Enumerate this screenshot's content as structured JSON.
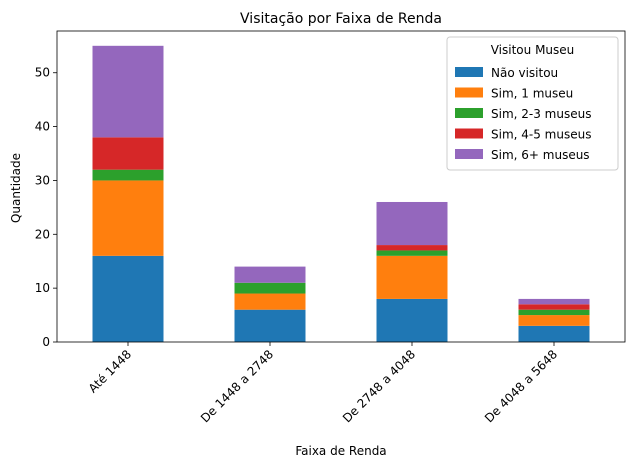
{
  "chart_data": {
    "type": "bar",
    "stacked": true,
    "title": "Visitação por Faixa de Renda",
    "xlabel": "Faixa de Renda",
    "ylabel": "Quantidade",
    "categories": [
      "Até 1448",
      "De 1448 a 2748",
      "De 2748 a 4048",
      "De 4048 a 5648"
    ],
    "ylim": [
      0,
      57.75
    ],
    "yticks": [
      0,
      10,
      20,
      30,
      40,
      50
    ],
    "grid": false,
    "legend": {
      "title": "Visitou Museu",
      "placement": "top-right"
    },
    "series": [
      {
        "name": "Não visitou",
        "color": "#1f77b4",
        "values": [
          16,
          6,
          8,
          3
        ]
      },
      {
        "name": "Sim, 1 museu",
        "color": "#ff7f0e",
        "values": [
          14,
          3,
          8,
          2
        ]
      },
      {
        "name": "Sim, 2-3 museus",
        "color": "#2ca02c",
        "values": [
          2,
          2,
          1,
          1
        ]
      },
      {
        "name": "Sim, 4-5 museus",
        "color": "#d62728",
        "values": [
          6,
          0,
          1,
          1
        ]
      },
      {
        "name": "Sim, 6+ museus",
        "color": "#9467bd",
        "values": [
          17,
          3,
          8,
          1
        ]
      }
    ]
  }
}
